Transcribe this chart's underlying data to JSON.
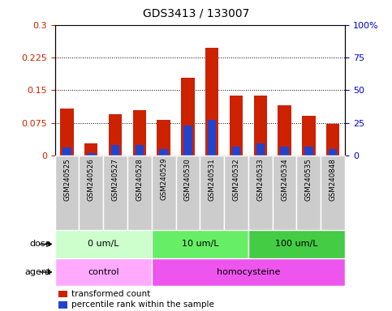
{
  "title": "GDS3413 / 133007",
  "samples": [
    "GSM240525",
    "GSM240526",
    "GSM240527",
    "GSM240528",
    "GSM240529",
    "GSM240530",
    "GSM240531",
    "GSM240532",
    "GSM240533",
    "GSM240534",
    "GSM240535",
    "GSM240848"
  ],
  "red_values": [
    0.108,
    0.028,
    0.095,
    0.105,
    0.082,
    0.178,
    0.248,
    0.138,
    0.138,
    0.115,
    0.092,
    0.072
  ],
  "blue_percentiles": [
    6,
    2,
    8,
    8,
    5,
    23,
    27,
    7,
    9,
    7,
    7,
    5
  ],
  "left_ylim": [
    0,
    0.3
  ],
  "right_ylim": [
    0,
    100
  ],
  "left_yticks": [
    0,
    0.075,
    0.15,
    0.225,
    0.3
  ],
  "right_yticks": [
    0,
    25,
    50,
    75,
    100
  ],
  "left_ytick_labels": [
    "0",
    "0.075",
    "0.15",
    "0.225",
    "0.3"
  ],
  "right_ytick_labels": [
    "0",
    "25",
    "50",
    "75",
    "100%"
  ],
  "dose_groups": [
    {
      "label": "0 um/L",
      "start": 0,
      "end": 4,
      "color": "#ccffcc"
    },
    {
      "label": "10 um/L",
      "start": 4,
      "end": 8,
      "color": "#66ee66"
    },
    {
      "label": "100 um/L",
      "start": 8,
      "end": 12,
      "color": "#44cc44"
    }
  ],
  "agent_groups": [
    {
      "label": "control",
      "start": 0,
      "end": 4,
      "color": "#ffaaff"
    },
    {
      "label": "homocysteine",
      "start": 4,
      "end": 12,
      "color": "#ee55ee"
    }
  ],
  "bar_color_red": "#cc2200",
  "bar_color_blue": "#2244cc",
  "bar_width": 0.55,
  "blue_bar_width": 0.35,
  "tick_label_color_left": "#cc2200",
  "tick_label_color_right": "#0000cc",
  "legend_items": [
    {
      "color": "#cc2200",
      "label": "transformed count"
    },
    {
      "color": "#2244cc",
      "label": "percentile rank within the sample"
    }
  ],
  "dose_label": "dose",
  "agent_label": "agent",
  "xlabel_bg": "#d0d0d0"
}
